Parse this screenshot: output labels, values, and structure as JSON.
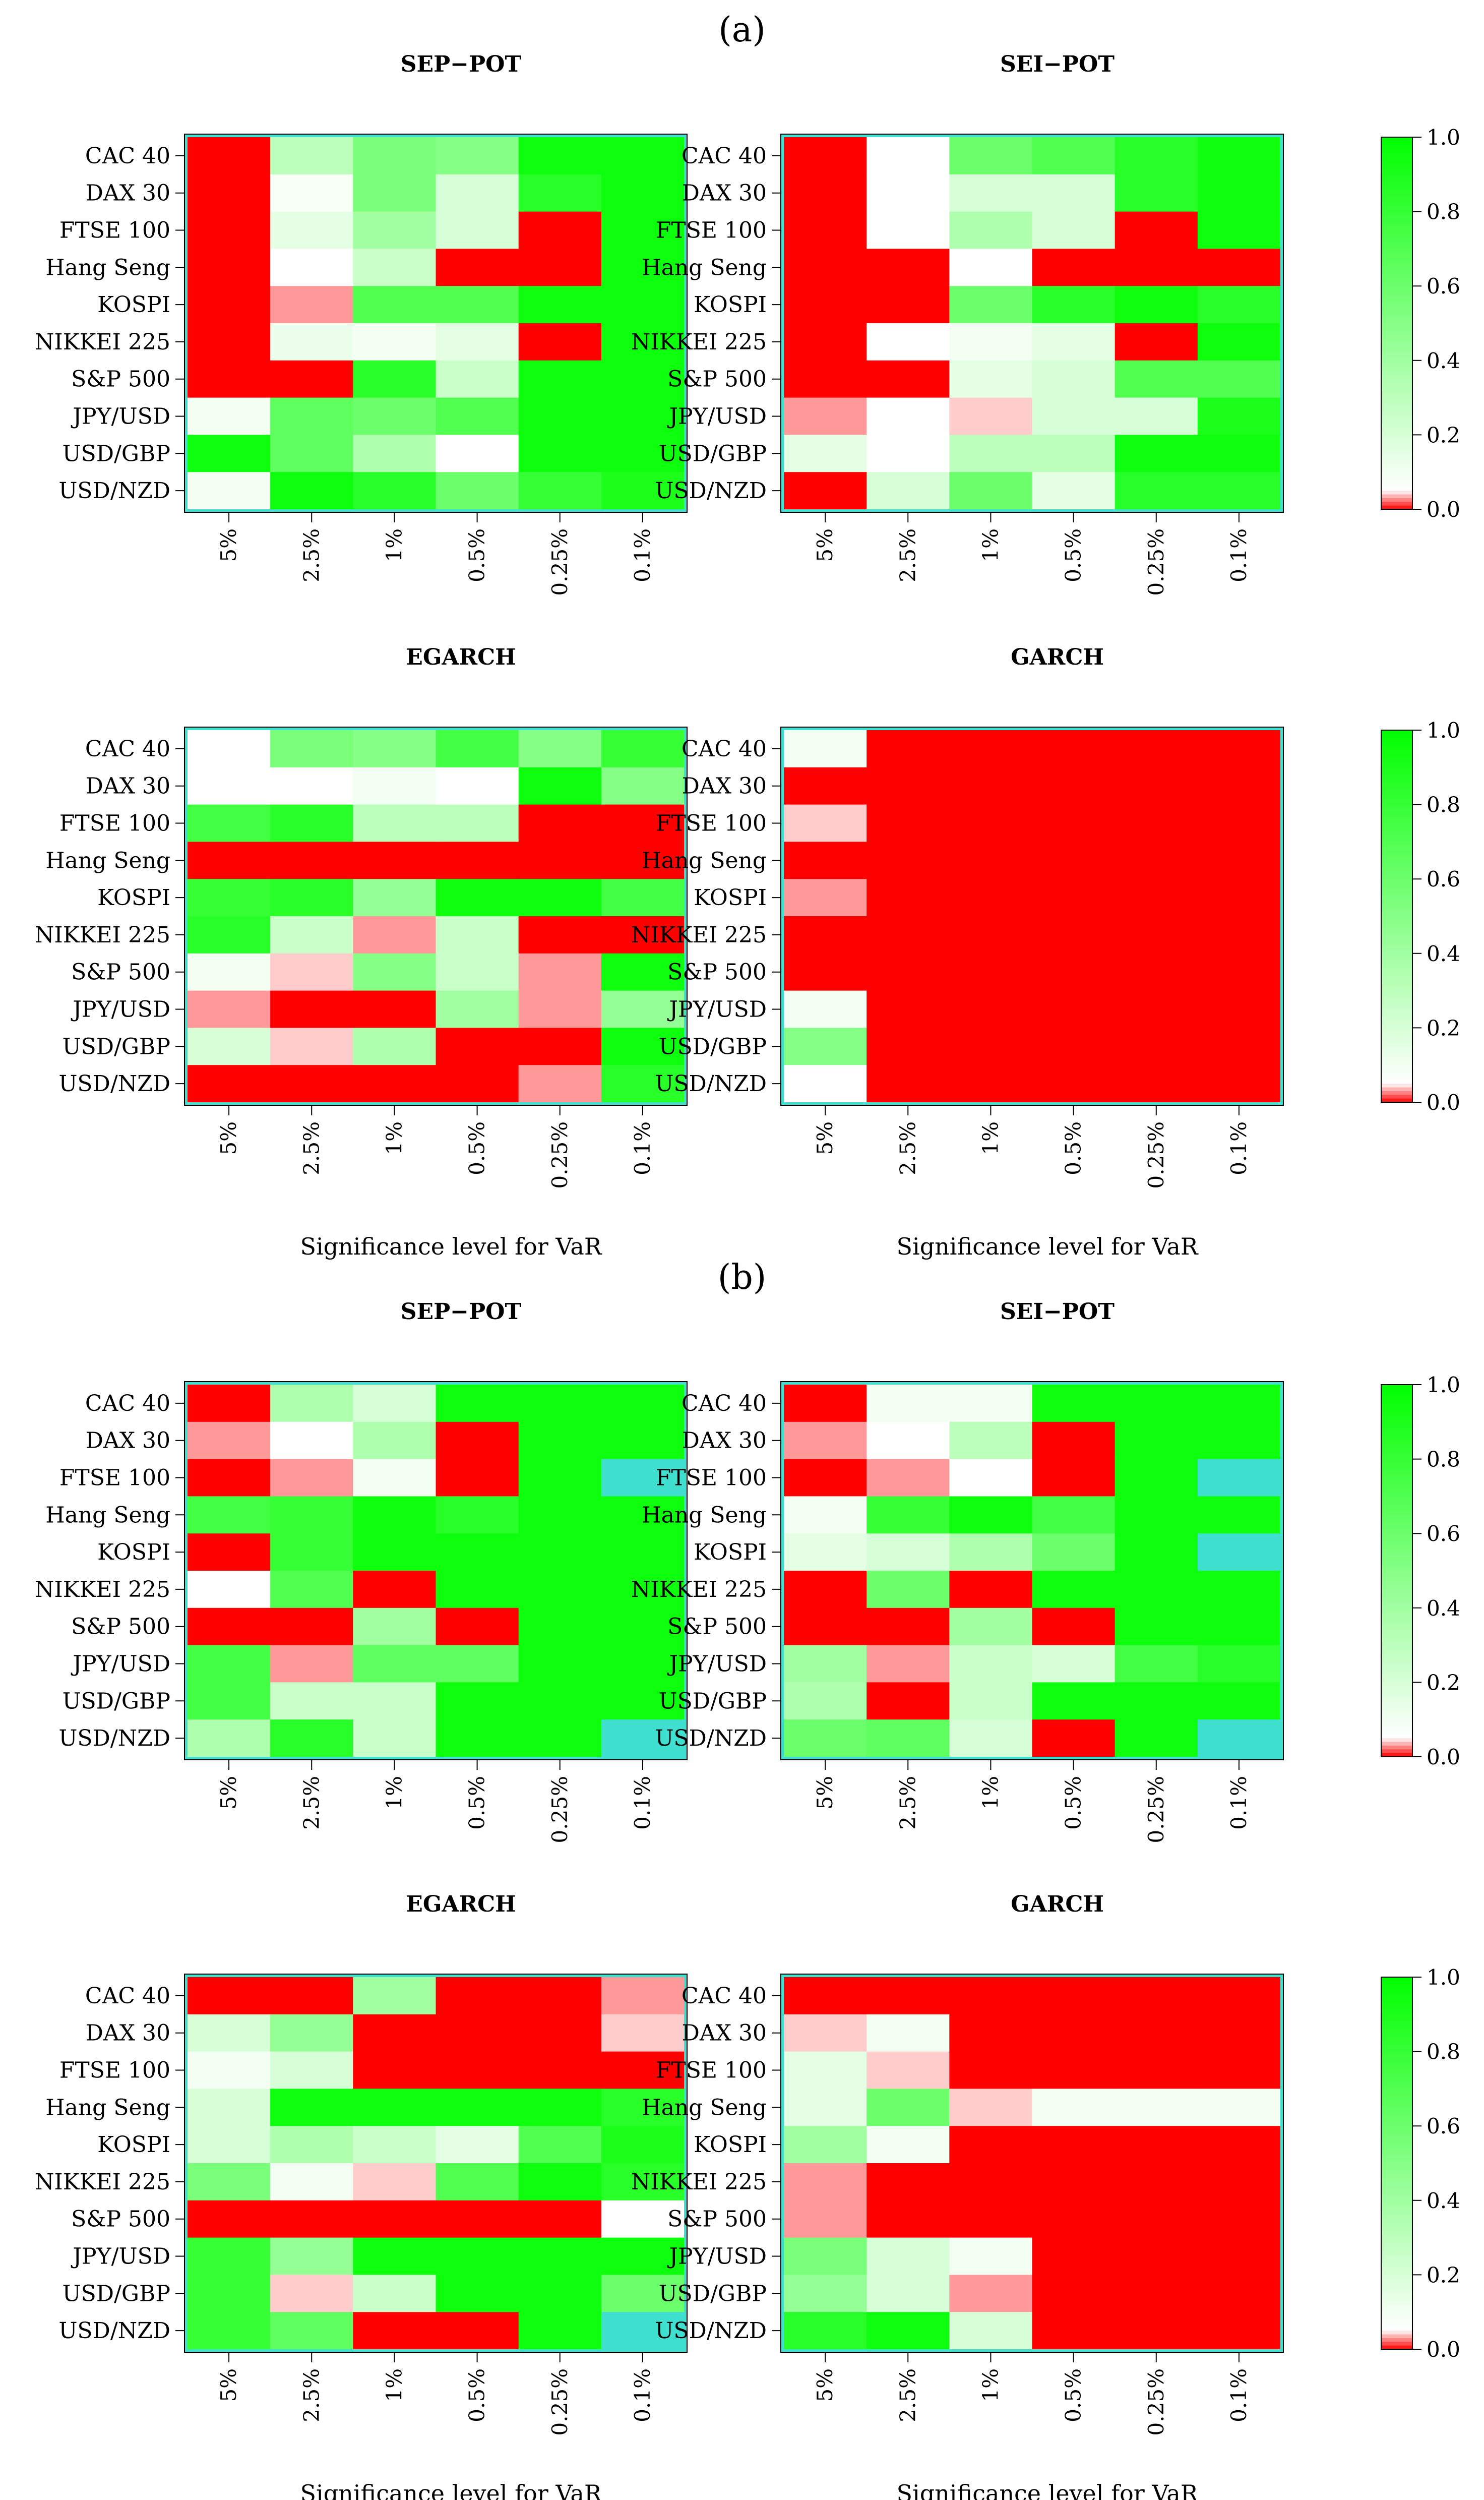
{
  "palette": {
    "low": "#ff0000",
    "mid": "#ffffff",
    "high": "#00ff00",
    "na": "#40e0d0",
    "frame": "#40e0d0"
  },
  "chart_data": {
    "type": "heatmap",
    "description_value": "p-value (0 to 1) per index and VaR significance level",
    "rows": [
      "CAC 40",
      "DAX 30",
      "FTSE 100",
      "Hang Seng",
      "KOSPI",
      "NIKKEI 225",
      "S&P 500",
      "JPY/USD",
      "USD/GBP",
      "USD/NZD"
    ],
    "columns": [
      "5%",
      "2.5%",
      "1%",
      "0.5%",
      "0.25%",
      "0.1%"
    ],
    "xlabel": "Significance level for VaR",
    "colorbar": {
      "ticks": [
        "0.0",
        "0.2",
        "0.4",
        "0.6",
        "0.8",
        "1.0"
      ],
      "range": [
        0,
        1
      ]
    },
    "panels": [
      {
        "part": "(a)",
        "title": "SEP−POT",
        "values": [
          [
            0.0,
            0.3,
            0.55,
            0.5,
            0.95,
            0.95
          ],
          [
            0.0,
            0.08,
            0.55,
            0.2,
            0.85,
            0.95
          ],
          [
            0.0,
            0.15,
            0.4,
            0.2,
            0.0,
            0.95
          ],
          [
            0.0,
            0.05,
            0.25,
            0.0,
            0.0,
            0.95
          ],
          [
            0.0,
            0.03,
            0.7,
            0.7,
            0.95,
            0.95
          ],
          [
            0.0,
            0.12,
            0.1,
            0.15,
            0.0,
            0.95
          ],
          [
            0.0,
            0.0,
            0.85,
            0.25,
            0.95,
            0.95
          ],
          [
            0.1,
            0.65,
            0.6,
            0.7,
            0.95,
            0.95
          ],
          [
            0.95,
            0.65,
            0.35,
            0.05,
            0.95,
            0.95
          ],
          [
            0.1,
            0.95,
            0.85,
            0.6,
            0.8,
            0.9
          ]
        ]
      },
      {
        "part": "(a)",
        "title": "SEI−POT",
        "values": [
          [
            0.0,
            0.05,
            0.6,
            0.7,
            0.85,
            0.95
          ],
          [
            0.0,
            0.05,
            0.2,
            0.2,
            0.85,
            0.95
          ],
          [
            0.0,
            0.05,
            0.35,
            0.2,
            0.0,
            0.95
          ],
          [
            0.0,
            0.0,
            0.05,
            0.0,
            0.0,
            0.0
          ],
          [
            0.0,
            0.0,
            0.6,
            0.85,
            0.95,
            0.85
          ],
          [
            0.0,
            0.05,
            0.1,
            0.15,
            0.0,
            0.95
          ],
          [
            0.0,
            0.0,
            0.15,
            0.2,
            0.7,
            0.7
          ],
          [
            0.03,
            0.05,
            0.04,
            0.2,
            0.2,
            0.9
          ],
          [
            0.15,
            0.05,
            0.3,
            0.3,
            0.95,
            0.95
          ],
          [
            0.0,
            0.2,
            0.6,
            0.15,
            0.85,
            0.85
          ]
        ]
      },
      {
        "part": "(a)",
        "title": "EGARCH",
        "values": [
          [
            0.05,
            0.55,
            0.5,
            0.75,
            0.5,
            0.8
          ],
          [
            0.05,
            0.05,
            0.1,
            0.05,
            0.95,
            0.5
          ],
          [
            0.75,
            0.85,
            0.3,
            0.3,
            0.0,
            0.0
          ],
          [
            0.0,
            0.0,
            0.0,
            0.0,
            0.0,
            0.0
          ],
          [
            0.8,
            0.85,
            0.45,
            0.95,
            0.95,
            0.75
          ],
          [
            0.85,
            0.25,
            0.03,
            0.25,
            0.0,
            0.0
          ],
          [
            0.1,
            0.04,
            0.5,
            0.25,
            0.03,
            0.95
          ],
          [
            0.03,
            0.0,
            0.0,
            0.4,
            0.03,
            0.45
          ],
          [
            0.2,
            0.04,
            0.35,
            0.0,
            0.0,
            0.95
          ],
          [
            0.0,
            0.0,
            0.0,
            0.0,
            0.03,
            0.85
          ]
        ]
      },
      {
        "part": "(a)",
        "title": "GARCH",
        "values": [
          [
            0.1,
            0.0,
            0.0,
            0.0,
            0.0,
            0.0
          ],
          [
            0.0,
            0.0,
            0.0,
            0.0,
            0.0,
            0.0
          ],
          [
            0.04,
            0.0,
            0.0,
            0.0,
            0.0,
            0.0
          ],
          [
            0.0,
            0.0,
            0.0,
            0.0,
            0.0,
            0.0
          ],
          [
            0.03,
            0.0,
            0.0,
            0.0,
            0.0,
            0.0
          ],
          [
            0.0,
            0.0,
            0.0,
            0.0,
            0.0,
            0.0
          ],
          [
            0.0,
            0.0,
            0.0,
            0.0,
            0.0,
            0.0
          ],
          [
            0.1,
            0.0,
            0.0,
            0.0,
            0.0,
            0.0
          ],
          [
            0.5,
            0.0,
            0.0,
            0.0,
            0.0,
            0.0
          ],
          [
            0.05,
            0.0,
            0.0,
            0.0,
            0.0,
            0.0
          ]
        ]
      },
      {
        "part": "(b)",
        "title": "SEP−POT",
        "values": [
          [
            0.0,
            0.35,
            0.2,
            0.95,
            0.95,
            0.95
          ],
          [
            0.03,
            0.05,
            0.35,
            0.0,
            0.95,
            0.95
          ],
          [
            0.0,
            0.03,
            0.1,
            0.0,
            0.95,
            null
          ],
          [
            0.75,
            0.8,
            0.95,
            0.85,
            0.95,
            0.95
          ],
          [
            0.0,
            0.8,
            0.95,
            0.95,
            0.95,
            0.95
          ],
          [
            0.05,
            0.7,
            0.0,
            0.95,
            0.95,
            0.95
          ],
          [
            0.0,
            0.0,
            0.4,
            0.0,
            0.95,
            0.95
          ],
          [
            0.75,
            0.03,
            0.65,
            0.65,
            0.95,
            0.95
          ],
          [
            0.75,
            0.25,
            0.25,
            0.95,
            0.95,
            0.95
          ],
          [
            0.35,
            0.85,
            0.25,
            0.95,
            0.95,
            null
          ]
        ]
      },
      {
        "part": "(b)",
        "title": "SEI−POT",
        "values": [
          [
            0.0,
            0.1,
            0.1,
            0.95,
            0.95,
            0.95
          ],
          [
            0.03,
            0.05,
            0.3,
            0.0,
            0.95,
            0.95
          ],
          [
            0.0,
            0.03,
            0.05,
            0.0,
            0.95,
            null
          ],
          [
            0.1,
            0.8,
            0.95,
            0.75,
            0.95,
            0.95
          ],
          [
            0.15,
            0.2,
            0.35,
            0.6,
            0.95,
            null
          ],
          [
            0.0,
            0.6,
            0.0,
            0.95,
            0.95,
            0.95
          ],
          [
            0.0,
            0.0,
            0.4,
            0.0,
            0.95,
            0.95
          ],
          [
            0.4,
            0.03,
            0.25,
            0.2,
            0.75,
            0.85
          ],
          [
            0.35,
            0.0,
            0.25,
            0.95,
            0.95,
            0.95
          ],
          [
            0.6,
            0.65,
            0.2,
            0.0,
            0.95,
            null
          ]
        ]
      },
      {
        "part": "(b)",
        "title": "EGARCH",
        "values": [
          [
            0.0,
            0.0,
            0.4,
            0.0,
            0.0,
            0.03
          ],
          [
            0.2,
            0.45,
            0.0,
            0.0,
            0.0,
            0.04
          ],
          [
            0.1,
            0.2,
            0.0,
            0.0,
            0.0,
            0.0
          ],
          [
            0.2,
            0.95,
            0.95,
            0.95,
            0.95,
            0.85
          ],
          [
            0.2,
            0.35,
            0.25,
            0.15,
            0.7,
            0.9
          ],
          [
            0.55,
            0.1,
            0.04,
            0.7,
            0.95,
            0.85
          ],
          [
            0.0,
            0.0,
            0.0,
            0.0,
            0.0,
            0.05
          ],
          [
            0.8,
            0.45,
            0.95,
            0.95,
            0.95,
            0.95
          ],
          [
            0.8,
            0.04,
            0.25,
            0.95,
            0.95,
            0.6
          ],
          [
            0.8,
            0.65,
            0.0,
            0.0,
            0.95,
            null
          ]
        ]
      },
      {
        "part": "(b)",
        "title": "GARCH",
        "values": [
          [
            0.0,
            0.0,
            0.0,
            0.0,
            0.0,
            0.0
          ],
          [
            0.04,
            0.1,
            0.0,
            0.0,
            0.0,
            0.0
          ],
          [
            0.15,
            0.04,
            0.0,
            0.0,
            0.0,
            0.0
          ],
          [
            0.15,
            0.6,
            0.04,
            0.1,
            0.1,
            0.1
          ],
          [
            0.4,
            0.1,
            0.0,
            0.0,
            0.0,
            0.0
          ],
          [
            0.03,
            0.0,
            0.0,
            0.0,
            0.0,
            0.0
          ],
          [
            0.03,
            0.0,
            0.0,
            0.0,
            0.0,
            0.0
          ],
          [
            0.55,
            0.2,
            0.1,
            0.0,
            0.0,
            0.0
          ],
          [
            0.45,
            0.2,
            0.03,
            0.0,
            0.0,
            0.0
          ],
          [
            0.85,
            0.95,
            0.2,
            0.0,
            0.0,
            0.0
          ]
        ]
      }
    ]
  }
}
